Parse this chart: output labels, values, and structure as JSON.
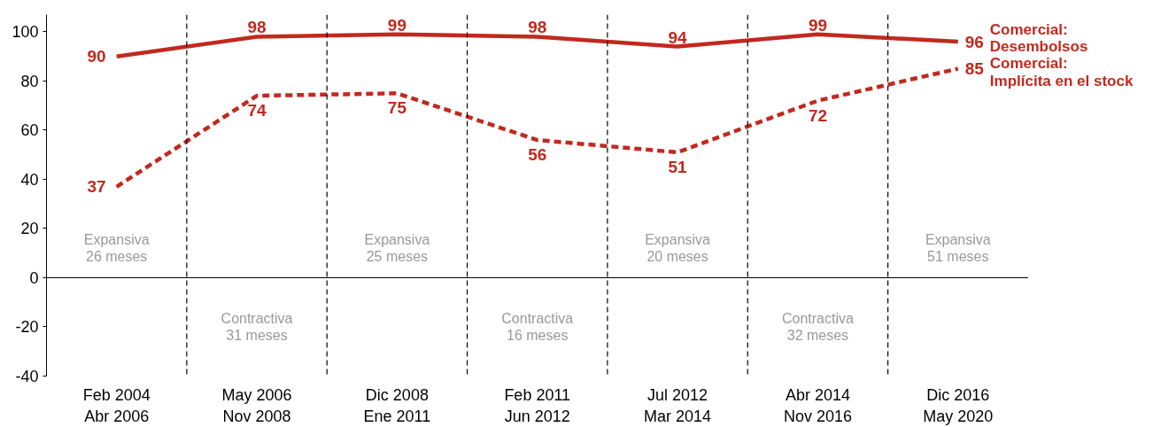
{
  "chart_data": {
    "type": "line",
    "categories": [
      "Feb 2004\nAbr 2006",
      "May 2006\nNov 2008",
      "Dic 2008\nEne 2011",
      "Feb 2011\nJun 2012",
      "Jul 2012\nMar 2014",
      "Abr 2014\nNov 2016",
      "Dic 2016\nMay 2020"
    ],
    "series": [
      {
        "name": "Comercial:\nDesembolsos",
        "color": "#c3281e",
        "line_style": "solid",
        "values": [
          90,
          98,
          99,
          98,
          94,
          99,
          96
        ]
      },
      {
        "name": "Comercial:\nImplícita en el stock",
        "color": "#c3281e",
        "line_style": "dashed",
        "values": [
          37,
          74,
          75,
          56,
          51,
          72,
          85
        ]
      }
    ],
    "ylim": [
      -40,
      107
    ],
    "yticks": [
      -40,
      -20,
      0,
      20,
      40,
      60,
      80,
      100
    ],
    "grid": "x",
    "data_labels": true,
    "marker": "none",
    "ref_lines": [
      {
        "axis": "y",
        "value": 0,
        "color": "#000000"
      }
    ],
    "annotations": [
      "Expansiva\n26 meses",
      "Contractiva\n31 meses",
      "Expansiva\n25 meses",
      "Contractiva\n16 meses",
      "Expansiva\n20 meses",
      "Contractiva\n32 meses",
      "Expansiva\n51 meses"
    ]
  }
}
